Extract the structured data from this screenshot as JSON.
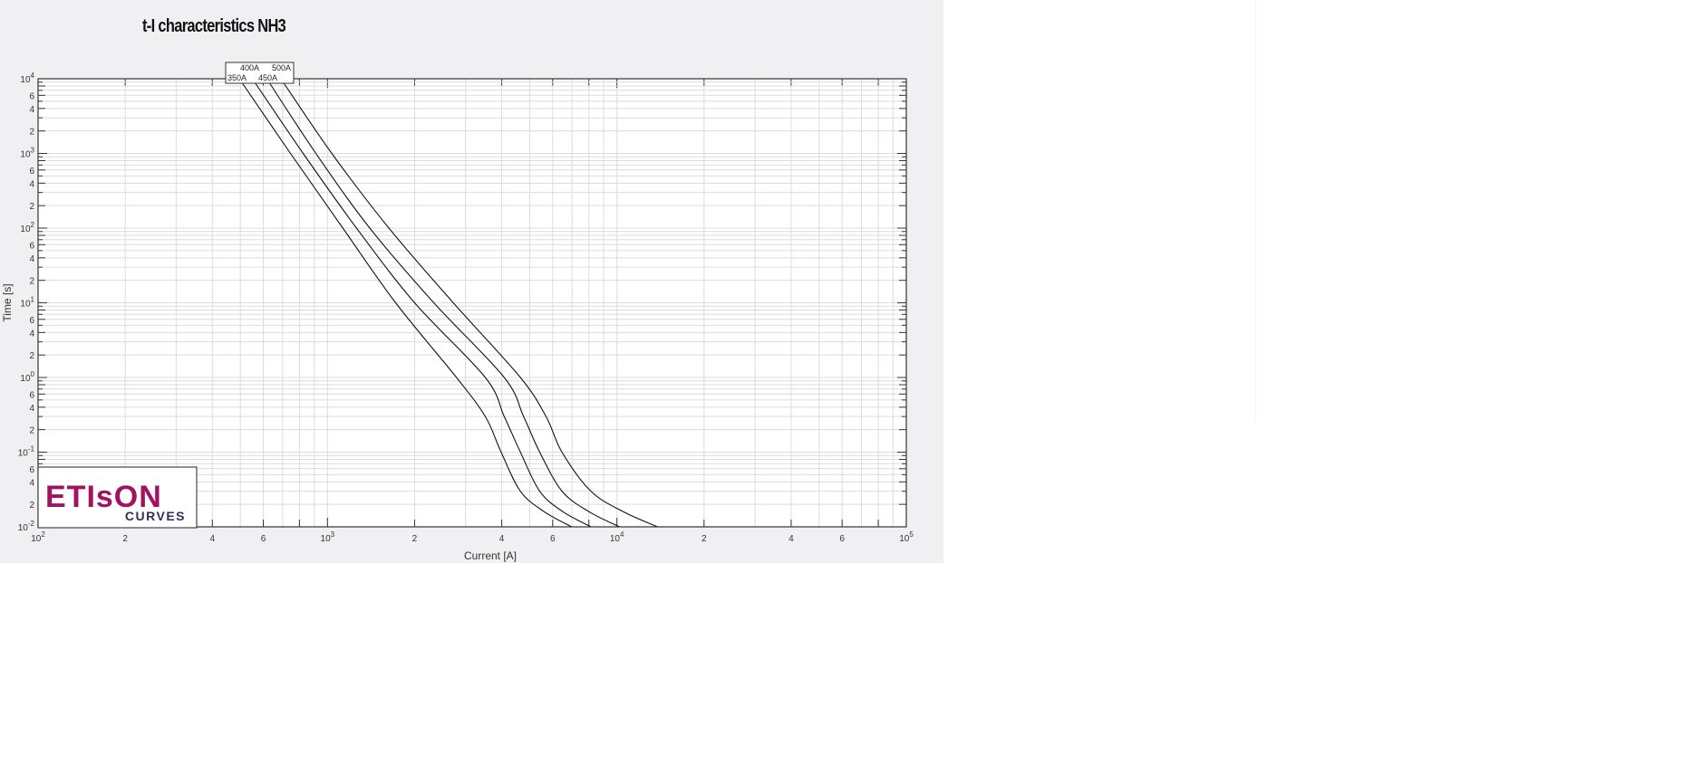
{
  "chart_data": {
    "type": "line",
    "title": "t-I characteristics NH3",
    "xlabel": "Current [A]",
    "ylabel": "Time [s]",
    "xscale": "log",
    "yscale": "log",
    "xlim": [
      100,
      100000
    ],
    "ylim": [
      0.01,
      10000
    ],
    "grid": true,
    "x_tick_labels": [
      "10^2",
      "2",
      "4",
      "6",
      "10^3",
      "2",
      "4",
      "6",
      "10^4",
      "2",
      "4",
      "6",
      "10^5"
    ],
    "y_tick_labels": [
      "10^4",
      "6",
      "4",
      "2",
      "10^3",
      "6",
      "4",
      "2",
      "10^2",
      "6",
      "4",
      "2",
      "10^1",
      "6",
      "4",
      "2",
      "10^0",
      "6",
      "4",
      "2",
      "10^-1",
      "6",
      "4",
      "2",
      "10^-2"
    ],
    "legend_placement": "top-left, above plot",
    "line_color": "#111111",
    "series": [
      {
        "name": "350A",
        "points": [
          [
            496,
            10000
          ],
          [
            745,
            1000
          ],
          [
            1130,
            100
          ],
          [
            1720,
            10
          ],
          [
            2790,
            1
          ],
          [
            3510,
            0.3
          ],
          [
            3980,
            0.1
          ],
          [
            4640,
            0.03
          ],
          [
            5600,
            0.016
          ],
          [
            6970,
            0.01
          ]
        ]
      },
      {
        "name": "400A",
        "points": [
          [
            550,
            10000
          ],
          [
            824,
            1000
          ],
          [
            1260,
            100
          ],
          [
            2000,
            10
          ],
          [
            3510,
            1
          ],
          [
            4080,
            0.3
          ],
          [
            4640,
            0.1
          ],
          [
            5410,
            0.03
          ],
          [
            6500,
            0.016
          ],
          [
            8130,
            0.01
          ]
        ]
      },
      {
        "name": "450A",
        "points": [
          [
            617,
            10000
          ],
          [
            912,
            1000
          ],
          [
            1400,
            100
          ],
          [
            2330,
            10
          ],
          [
            4080,
            1
          ],
          [
            4760,
            0.3
          ],
          [
            5410,
            0.1
          ],
          [
            6460,
            0.03
          ],
          [
            8000,
            0.016
          ],
          [
            10200,
            0.01
          ]
        ]
      },
      {
        "name": "500A",
        "points": [
          [
            690,
            10000
          ],
          [
            1035,
            1000
          ],
          [
            1630,
            100
          ],
          [
            2720,
            10
          ],
          [
            4640,
            1
          ],
          [
            5690,
            0.3
          ],
          [
            6460,
            0.1
          ],
          [
            8130,
            0.03
          ],
          [
            10500,
            0.016
          ],
          [
            13800,
            0.01
          ]
        ]
      }
    ]
  },
  "logo": {
    "main": "ETIsON",
    "sub": "CURVES",
    "color": "#a3125e",
    "sub_color": "#3b2a5e"
  }
}
